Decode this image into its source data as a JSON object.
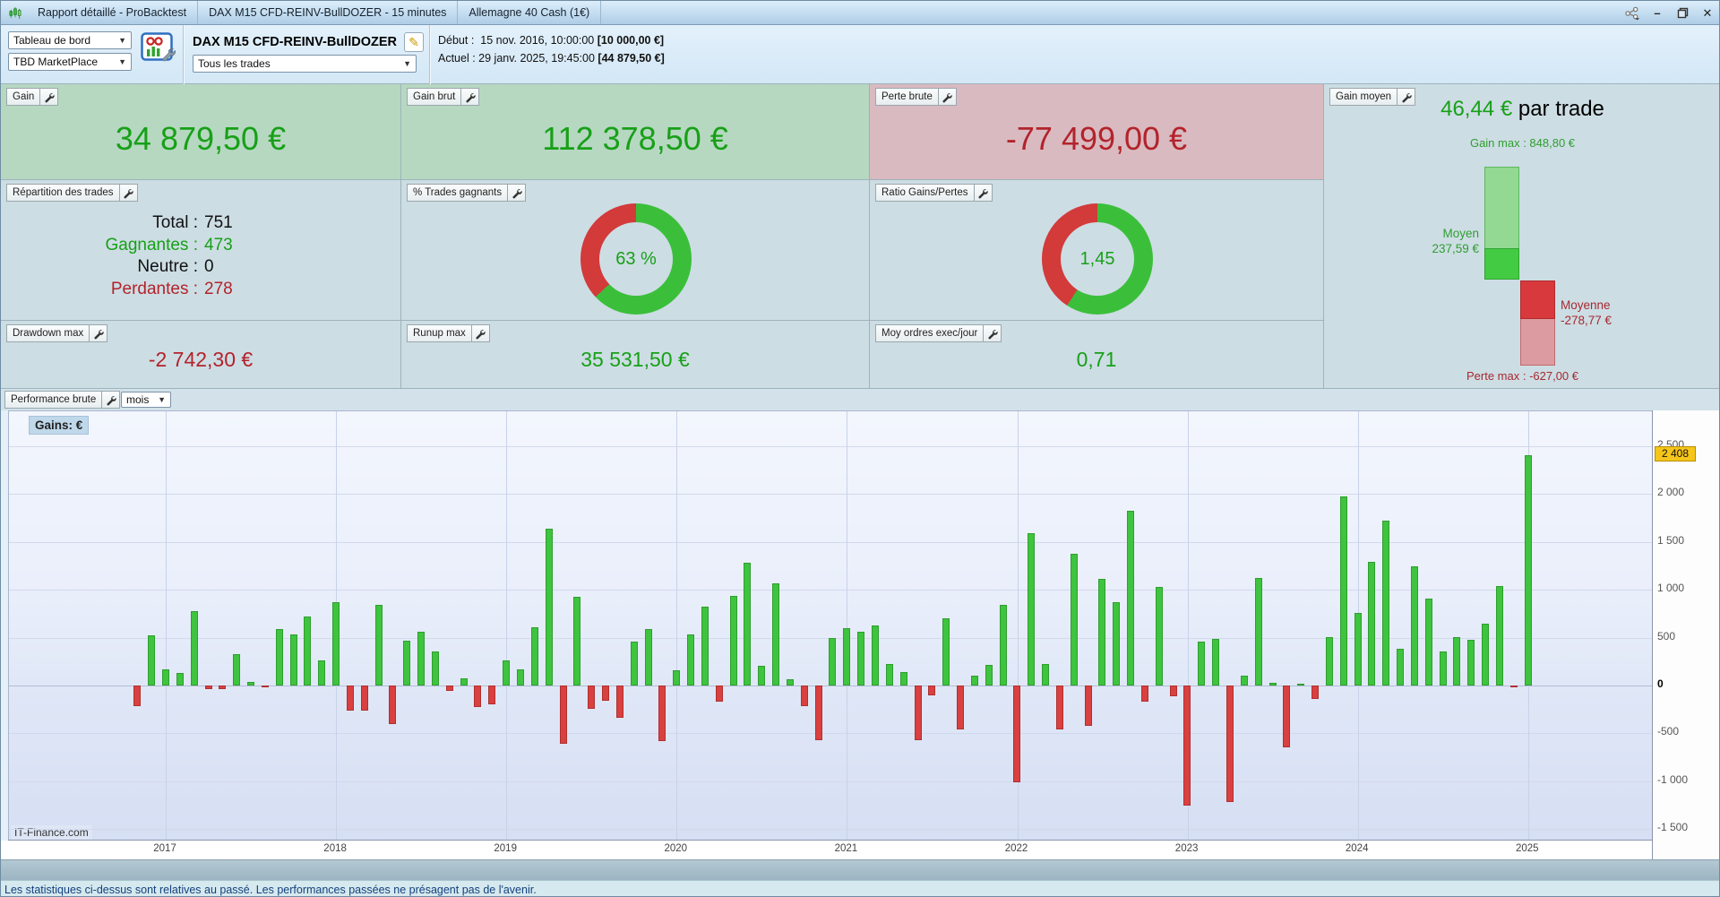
{
  "titlebar": {
    "segments": [
      "Rapport détaillé - ProBacktest",
      "DAX M15 CFD-REINV-BullDOZER - 15 minutes",
      "Allemagne 40 Cash (1€)"
    ]
  },
  "toolbar": {
    "view_select": "Tableau de bord",
    "workspace_select": "TBD MarketPlace",
    "strategy_name": "DAX M15 CFD-REINV-BullDOZER",
    "trades_filter_select": "Tous les trades",
    "debut_label": "Début :",
    "debut_date": "15 nov. 2016, 10:00:00",
    "debut_capital": "[10 000,00 €]",
    "actuel_label": "Actuel :",
    "actuel_date": "29 janv. 2025, 19:45:00",
    "actuel_capital": "[44 879,50 €]"
  },
  "cards": {
    "gain": {
      "label": "Gain",
      "value": "34 879,50 €"
    },
    "gain_brut": {
      "label": "Gain brut",
      "value": "112 378,50 €"
    },
    "perte_brute": {
      "label": "Perte brute",
      "value": "-77 499,00 €"
    },
    "repartition": {
      "label": "Répartition des trades",
      "rows": [
        {
          "k": "Total :",
          "v": "751"
        },
        {
          "k": "Gagnantes :",
          "v": "473"
        },
        {
          "k": "Neutre :",
          "v": "0"
        },
        {
          "k": "Perdantes :",
          "v": "278"
        }
      ]
    },
    "pct_gagnants": {
      "label": "% Trades gagnants",
      "value": "63 %",
      "green_pct": 63
    },
    "ratio": {
      "label": "Ratio Gains/Pertes",
      "value": "1,45",
      "green_pct": 59.2
    },
    "drawdown": {
      "label": "Drawdown max",
      "value": "-2 742,30 €"
    },
    "runup": {
      "label": "Runup max",
      "value": "35 531,50 €"
    },
    "moy_ordres": {
      "label": "Moy ordres exec/jour",
      "value": "0,71"
    },
    "gain_moyen": {
      "label": "Gain moyen",
      "value": "46,44 €",
      "suffix": " par trade",
      "gain_max": "Gain max : 848,80 €",
      "moyen_label": "Moyen",
      "moyen_value": "237,59 €",
      "moyenne_label": "Moyenne",
      "moyenne_value": "-278,77 €",
      "perte_max": "Perte max : -627,00 €"
    }
  },
  "chart": {
    "panel_label": "Performance brute",
    "period_select": "mois",
    "axis_label": "Gains: €",
    "source": "IT-Finance.com",
    "current_value_label": "2 408"
  },
  "chart_data": {
    "type": "bar",
    "title": "Performance brute (mois)",
    "ylabel": "Gains: €",
    "ylim": [
      -1630,
      2860
    ],
    "grid": true,
    "x": [
      "2016-11",
      "2016-12",
      "2017-01",
      "2017-02",
      "2017-03",
      "2017-04",
      "2017-05",
      "2017-06",
      "2017-07",
      "2017-08",
      "2017-09",
      "2017-10",
      "2017-11",
      "2017-12",
      "2018-01",
      "2018-02",
      "2018-03",
      "2018-04",
      "2018-05",
      "2018-06",
      "2018-07",
      "2018-08",
      "2018-09",
      "2018-10",
      "2018-11",
      "2018-12",
      "2019-01",
      "2019-02",
      "2019-03",
      "2019-04",
      "2019-05",
      "2019-06",
      "2019-07",
      "2019-08",
      "2019-09",
      "2019-10",
      "2019-11",
      "2019-12",
      "2020-01",
      "2020-02",
      "2020-03",
      "2020-04",
      "2020-05",
      "2020-06",
      "2020-07",
      "2020-08",
      "2020-09",
      "2020-10",
      "2020-11",
      "2020-12",
      "2021-01",
      "2021-02",
      "2021-03",
      "2021-04",
      "2021-05",
      "2021-06",
      "2021-07",
      "2021-08",
      "2021-09",
      "2021-10",
      "2021-11",
      "2021-12",
      "2022-01",
      "2022-02",
      "2022-03",
      "2022-04",
      "2022-05",
      "2022-06",
      "2022-07",
      "2022-08",
      "2022-09",
      "2022-10",
      "2022-11",
      "2022-12",
      "2023-01",
      "2023-02",
      "2023-03",
      "2023-04",
      "2023-05",
      "2023-06",
      "2023-07",
      "2023-08",
      "2023-09",
      "2023-10",
      "2023-11",
      "2023-12",
      "2024-01",
      "2024-02",
      "2024-03",
      "2024-04",
      "2024-05",
      "2024-06",
      "2024-07",
      "2024-08",
      "2024-09",
      "2024-10",
      "2024-11",
      "2024-12",
      "2025-01"
    ],
    "values": [
      -220,
      520,
      165,
      130,
      775,
      -40,
      -40,
      330,
      40,
      -20,
      590,
      535,
      720,
      260,
      870,
      -265,
      -260,
      840,
      -400,
      470,
      560,
      360,
      -60,
      75,
      -225,
      -200,
      260,
      170,
      605,
      1635,
      -605,
      925,
      -240,
      -155,
      -335,
      460,
      590,
      -585,
      160,
      530,
      820,
      -165,
      940,
      1280,
      205,
      1065,
      65,
      -215,
      -575,
      500,
      600,
      560,
      625,
      225,
      145,
      -575,
      -105,
      705,
      -460,
      105,
      215,
      845,
      -1010,
      1595,
      225,
      -460,
      1380,
      -425,
      1110,
      870,
      1825,
      -170,
      1030,
      -115,
      -1250,
      455,
      490,
      -1220,
      100,
      1120,
      30,
      -645,
      20,
      -140,
      510,
      1980,
      760,
      1290,
      1720,
      385,
      1250,
      910,
      360,
      510,
      480,
      650,
      1035,
      -15,
      2408
    ],
    "y_ticks": [
      2500,
      2000,
      1500,
      1000,
      500,
      0,
      -500,
      -1000,
      -1500
    ],
    "y_tick_labels": [
      "2 500",
      "2 000",
      "1 500",
      "1 000",
      "500",
      "0",
      "-500",
      "-1 000",
      "-1 500"
    ],
    "x_year_ticks": [
      "2017",
      "2018",
      "2019",
      "2020",
      "2021",
      "2022",
      "2023",
      "2024",
      "2025"
    ],
    "current_value": 2408,
    "bar_color_positive": "#3ec43e",
    "bar_color_negative": "#d94040"
  },
  "colors": {
    "gain_text": "#17a017",
    "loss_text": "#b3232b",
    "card_green_bg": "#b6d8c1",
    "card_red_bg": "#d9bac0",
    "card_blue_bg": "#cddde4",
    "donut_green": "#3bbf3b",
    "donut_red": "#d33a3a",
    "current_value_bg": "#f6c51b"
  },
  "footer": {
    "disclaimer": "Les statistiques ci-dessus sont relatives au passé. Les performances passées ne présagent pas de l'avenir."
  }
}
